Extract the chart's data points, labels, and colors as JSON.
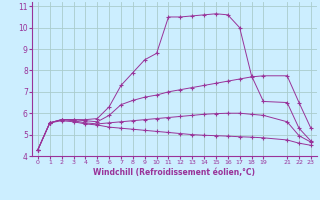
{
  "bg_color": "#cceeff",
  "grid_color": "#aacccc",
  "line_color": "#993399",
  "xlim": [
    -0.5,
    23.5
  ],
  "ylim": [
    4,
    11.2
  ],
  "xticks": [
    0,
    1,
    2,
    3,
    4,
    5,
    6,
    7,
    8,
    9,
    10,
    11,
    12,
    13,
    14,
    15,
    16,
    17,
    18,
    19,
    21,
    22,
    23
  ],
  "yticks": [
    4,
    5,
    6,
    7,
    8,
    9,
    10,
    11
  ],
  "xlabel": "Windchill (Refroidissement éolien,°C)",
  "curve1_x": [
    0,
    1,
    2,
    3,
    4,
    5,
    6,
    7,
    8,
    9,
    10,
    11,
    12,
    13,
    14,
    15,
    16,
    17,
    18,
    19,
    21,
    22,
    23
  ],
  "curve1_y": [
    4.3,
    5.55,
    5.7,
    5.7,
    5.7,
    5.75,
    6.3,
    7.3,
    7.9,
    8.5,
    8.8,
    10.5,
    10.5,
    10.55,
    10.6,
    10.65,
    10.6,
    10.0,
    7.75,
    6.55,
    6.5,
    5.3,
    4.7
  ],
  "curve2_x": [
    0,
    1,
    2,
    3,
    4,
    5,
    6,
    7,
    8,
    9,
    10,
    11,
    12,
    13,
    14,
    15,
    16,
    17,
    18,
    19,
    21,
    22,
    23
  ],
  "curve2_y": [
    4.3,
    5.55,
    5.7,
    5.7,
    5.65,
    5.6,
    5.9,
    6.4,
    6.6,
    6.75,
    6.85,
    7.0,
    7.1,
    7.2,
    7.3,
    7.4,
    7.5,
    7.6,
    7.7,
    7.75,
    7.75,
    6.5,
    5.3
  ],
  "curve3_x": [
    0,
    1,
    2,
    3,
    4,
    5,
    6,
    7,
    8,
    9,
    10,
    11,
    12,
    13,
    14,
    15,
    16,
    17,
    18,
    19,
    21,
    22,
    23
  ],
  "curve3_y": [
    4.3,
    5.55,
    5.7,
    5.65,
    5.55,
    5.5,
    5.55,
    5.6,
    5.65,
    5.7,
    5.75,
    5.8,
    5.85,
    5.9,
    5.95,
    5.98,
    6.0,
    6.0,
    5.95,
    5.9,
    5.6,
    4.95,
    4.65
  ],
  "curve4_x": [
    0,
    1,
    2,
    3,
    4,
    5,
    6,
    7,
    8,
    9,
    10,
    11,
    12,
    13,
    14,
    15,
    16,
    17,
    18,
    19,
    21,
    22,
    23
  ],
  "curve4_y": [
    4.3,
    5.55,
    5.65,
    5.6,
    5.5,
    5.45,
    5.35,
    5.3,
    5.25,
    5.2,
    5.15,
    5.1,
    5.05,
    5.0,
    4.97,
    4.95,
    4.93,
    4.9,
    4.88,
    4.85,
    4.75,
    4.6,
    4.5
  ]
}
